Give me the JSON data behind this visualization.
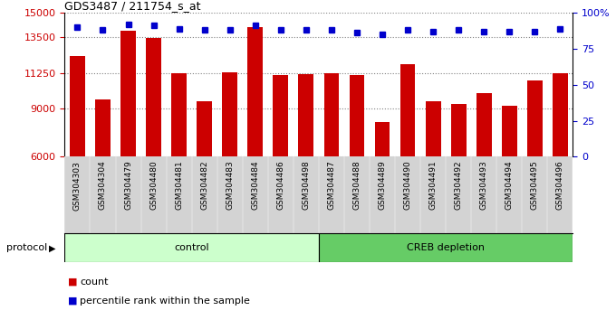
{
  "title": "GDS3487 / 211754_s_at",
  "categories": [
    "GSM304303",
    "GSM304304",
    "GSM304479",
    "GSM304480",
    "GSM304481",
    "GSM304482",
    "GSM304483",
    "GSM304484",
    "GSM304486",
    "GSM304498",
    "GSM304487",
    "GSM304488",
    "GSM304489",
    "GSM304490",
    "GSM304491",
    "GSM304492",
    "GSM304493",
    "GSM304494",
    "GSM304495",
    "GSM304496"
  ],
  "bar_values": [
    12300,
    9600,
    13900,
    13400,
    11200,
    9500,
    11300,
    14100,
    11100,
    11150,
    11200,
    11100,
    8200,
    11800,
    9500,
    9300,
    10000,
    9200,
    10800,
    11200
  ],
  "percentile_values": [
    90,
    88,
    92,
    91,
    89,
    88,
    88,
    91,
    88,
    88,
    88,
    86,
    85,
    88,
    87,
    88,
    87,
    87,
    87,
    89
  ],
  "bar_color": "#cc0000",
  "dot_color": "#0000cc",
  "ylim_left": [
    6000,
    15000
  ],
  "ylim_right": [
    0,
    100
  ],
  "yticks_left": [
    6000,
    9000,
    11250,
    13500,
    15000
  ],
  "ytick_labels_left": [
    "6000",
    "9000",
    "11250",
    "13500",
    "15000"
  ],
  "yticks_right": [
    0,
    25,
    50,
    75,
    100
  ],
  "ytick_labels_right": [
    "0",
    "25",
    "50",
    "75",
    "100%"
  ],
  "control_count": 10,
  "creb_count": 10,
  "control_label": "control",
  "creb_label": "CREB depletion",
  "protocol_label": "protocol",
  "legend_count_label": "count",
  "legend_percentile_label": "percentile rank within the sample",
  "control_color": "#ccffcc",
  "creb_color": "#66cc66",
  "bar_width": 0.6
}
